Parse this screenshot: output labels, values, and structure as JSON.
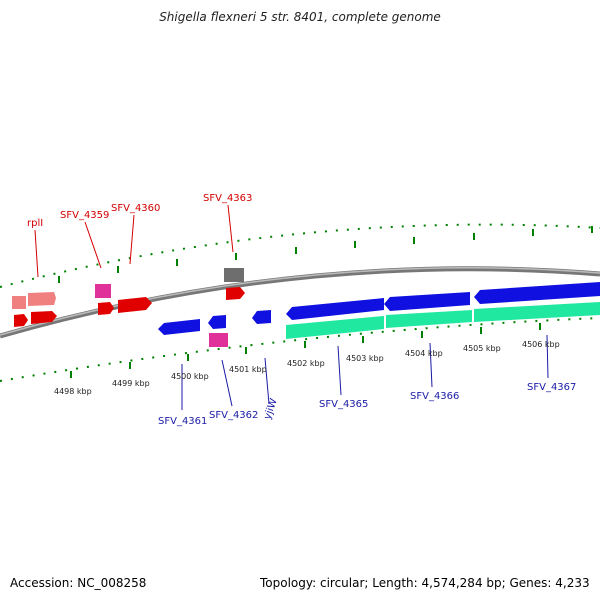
{
  "title": "Shigella flexneri 5 str. 8401, complete genome",
  "footer": {
    "accession": "Accession: NC_008258",
    "summary": "Topology: circular; Length: 4,574,284 bp; Genes: 4,233"
  },
  "colors": {
    "forward_cds": "#e00000",
    "forward_pale": "#f08080",
    "forward_rna": "#e0309a",
    "forward_other": "#6e6e6e",
    "reverse_cds": "#1010e0",
    "reverse_rna": "#e0309a",
    "cds_feature": "#20e8a0",
    "backbone": "#888888",
    "tick": "#008000",
    "forward_label": "#d40000",
    "reverse_label": "#1a1aa6"
  },
  "forward_labels": [
    "rplI",
    "SFV_4359",
    "SFV_4360",
    "SFV_4363"
  ],
  "reverse_labels": [
    "SFV_4361",
    "SFV_4362",
    "yjiW",
    "SFV_4365",
    "SFV_4366",
    "SFV_4367"
  ],
  "tick_labels": [
    "4498 kbp",
    "4499 kbp",
    "4500 kbp",
    "4501 kbp",
    "4502 kbp",
    "4503 kbp",
    "4504 kbp",
    "4505 kbp",
    "4506 kbp"
  ]
}
